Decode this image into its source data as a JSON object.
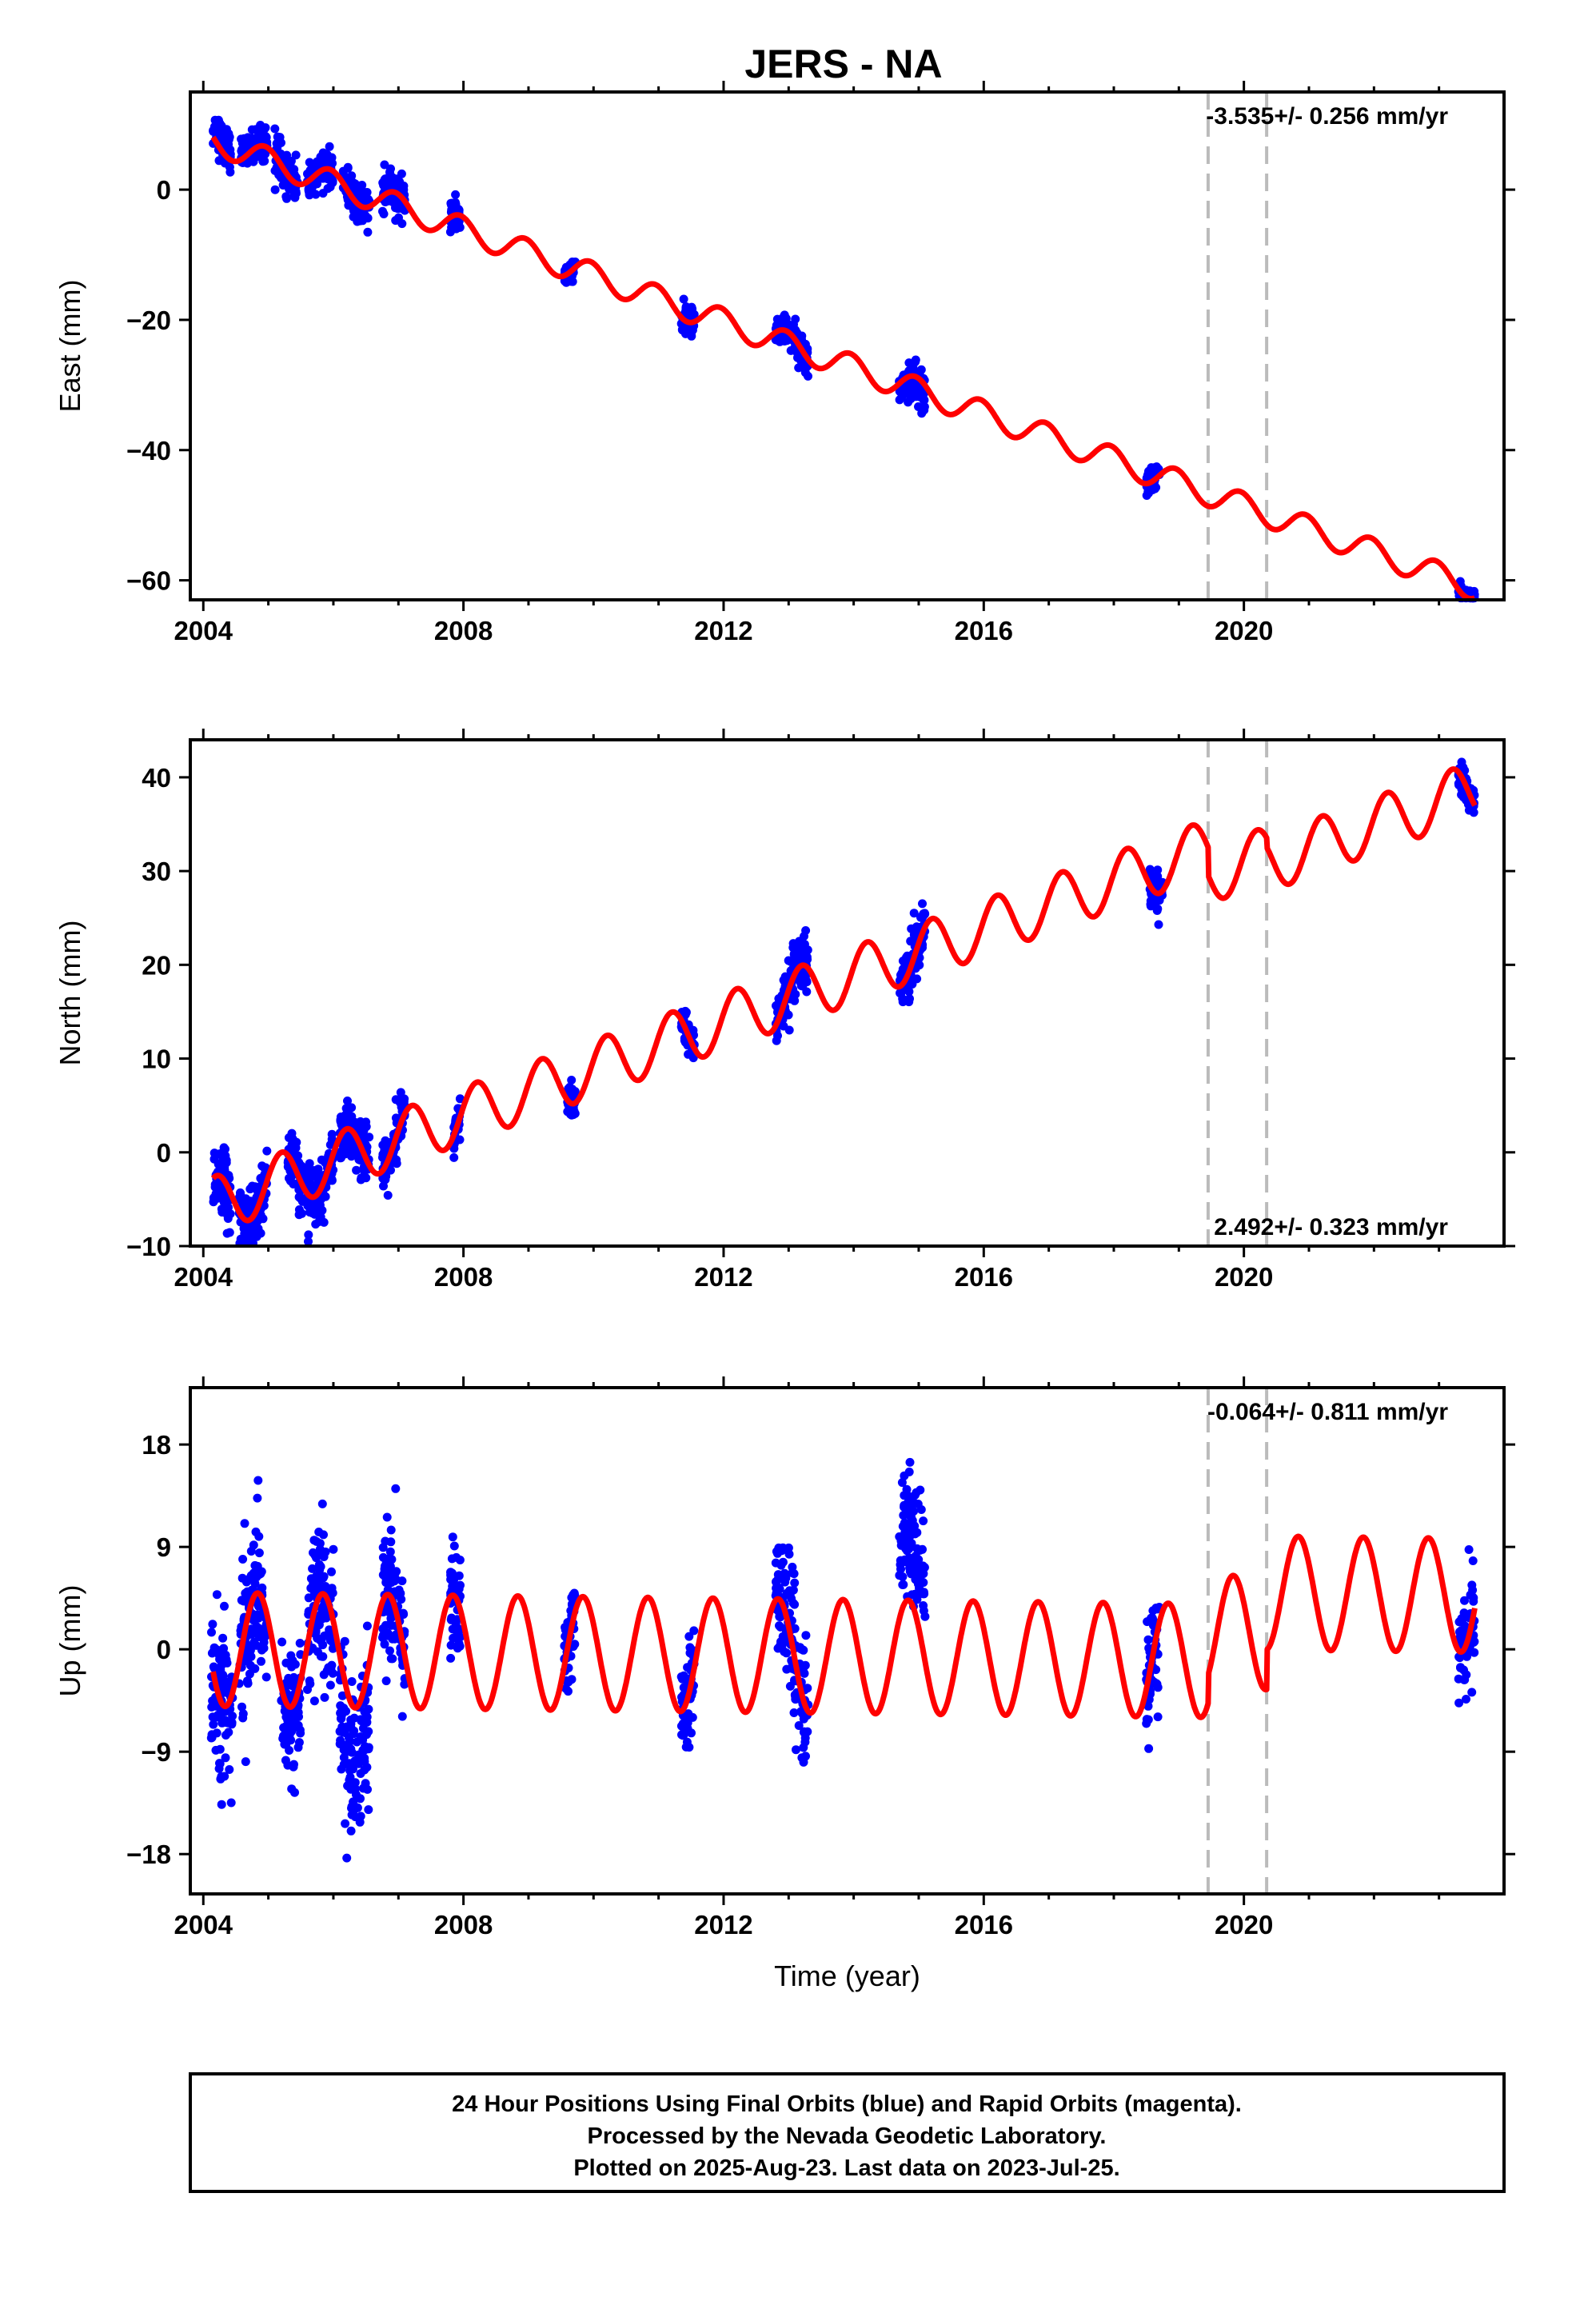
{
  "title": "JERS - NA",
  "colors": {
    "final_orbits": "#0000ff",
    "model": "#ff0000",
    "offset_line": "#bbbbbb"
  },
  "chart_data": [
    {
      "type": "scatter",
      "name": "east",
      "ylabel": "East (mm)",
      "xlabel": "",
      "xlim": [
        2003.8,
        2024.0
      ],
      "ylim": [
        -63,
        15
      ],
      "xticks": [
        2004,
        2008,
        2012,
        2016,
        2020
      ],
      "yticks": [
        0,
        -20,
        -40,
        -60
      ],
      "rate_text": "-3.535+/- 0.256 mm/yr",
      "rate_position": "top-right",
      "offset_epochs": [
        2019.45,
        2020.35
      ],
      "model": {
        "intercept": 8.0,
        "rate": -3.535,
        "t0": 2004.0,
        "annual_amp": 2.0,
        "annual_phase": 1.9,
        "steps": [
          0,
          0
        ]
      },
      "observations": [
        {
          "start": 2004.15,
          "end": 2004.42,
          "spread": 3.0,
          "offset": 1.5
        },
        {
          "start": 2004.58,
          "end": 2004.98,
          "spread": 2.5,
          "offset": 0.5
        },
        {
          "start": 2005.1,
          "end": 2005.45,
          "spread": 3.0,
          "offset": 0
        },
        {
          "start": 2005.6,
          "end": 2006.0,
          "spread": 2.5,
          "offset": 0
        },
        {
          "start": 2006.15,
          "end": 2006.55,
          "spread": 3.0,
          "offset": 0
        },
        {
          "start": 2006.75,
          "end": 2007.1,
          "spread": 3.0,
          "offset": 0
        },
        {
          "start": 2007.8,
          "end": 2007.95,
          "spread": 2.5,
          "offset": 0
        },
        {
          "start": 2009.55,
          "end": 2009.72,
          "spread": 1.5,
          "offset": 0
        },
        {
          "start": 2011.35,
          "end": 2011.55,
          "spread": 2.0,
          "offset": 0
        },
        {
          "start": 2012.8,
          "end": 2013.3,
          "spread": 2.5,
          "offset": 0
        },
        {
          "start": 2014.7,
          "end": 2015.1,
          "spread": 3.0,
          "offset": -1
        },
        {
          "start": 2018.5,
          "end": 2018.7,
          "spread": 2.0,
          "offset": 0
        },
        {
          "start": 2023.3,
          "end": 2023.55,
          "spread": 1.5,
          "offset": 0
        }
      ]
    },
    {
      "type": "scatter",
      "name": "north",
      "ylabel": "North (mm)",
      "xlabel": "",
      "xlim": [
        2003.8,
        2024.0
      ],
      "ylim": [
        -10,
        44
      ],
      "xticks": [
        2004,
        2008,
        2012,
        2016,
        2020
      ],
      "yticks": [
        -10,
        0,
        10,
        20,
        30,
        40
      ],
      "rate_text": "2.492+/- 0.323 mm/yr",
      "rate_position": "bottom-right",
      "offset_epochs": [
        2019.45,
        2020.35
      ],
      "model": {
        "intercept": -6.0,
        "rate": 2.492,
        "t0": 2004.0,
        "annual_amp": 3.0,
        "annual_phase": 0.3,
        "steps": [
          -3,
          -1
        ]
      },
      "observations": [
        {
          "start": 2004.15,
          "end": 2004.42,
          "spread": 3.5,
          "offset": -0.5
        },
        {
          "start": 2004.55,
          "end": 2004.98,
          "spread": 3.0,
          "offset": 0
        },
        {
          "start": 2005.3,
          "end": 2005.55,
          "spread": 3.0,
          "offset": 0
        },
        {
          "start": 2005.6,
          "end": 2006.0,
          "spread": 3.0,
          "offset": 0
        },
        {
          "start": 2006.1,
          "end": 2006.55,
          "spread": 3.0,
          "offset": 0
        },
        {
          "start": 2006.75,
          "end": 2007.1,
          "spread": 3.0,
          "offset": 0
        },
        {
          "start": 2007.85,
          "end": 2007.95,
          "spread": 2.0,
          "offset": 0
        },
        {
          "start": 2009.6,
          "end": 2009.72,
          "spread": 2.0,
          "offset": 0
        },
        {
          "start": 2011.35,
          "end": 2011.55,
          "spread": 2.0,
          "offset": 0
        },
        {
          "start": 2012.8,
          "end": 2013.3,
          "spread": 3.0,
          "offset": 0
        },
        {
          "start": 2014.7,
          "end": 2015.1,
          "spread": 3.0,
          "offset": 0
        },
        {
          "start": 2018.55,
          "end": 2018.75,
          "spread": 2.0,
          "offset": 0
        },
        {
          "start": 2023.3,
          "end": 2023.55,
          "spread": 1.5,
          "offset": 0
        }
      ]
    },
    {
      "type": "scatter",
      "name": "up",
      "ylabel": "Up (mm)",
      "xlabel": "Time (year)",
      "xlim": [
        2003.8,
        2024.0
      ],
      "ylim": [
        -21.5,
        23
      ],
      "xticks": [
        2004,
        2008,
        2012,
        2016,
        2020
      ],
      "yticks": [
        -18,
        -9,
        0,
        9,
        18
      ],
      "rate_text": "-0.064+/- 0.811 mm/yr",
      "rate_position": "top-right",
      "offset_epochs": [
        2019.45,
        2020.35
      ],
      "model": {
        "intercept": 0.0,
        "rate": -0.064,
        "t0": 2004.0,
        "annual_amp": 5.0,
        "annual_phase": 2.6,
        "steps": [
          2.5,
          3.5
        ]
      },
      "observations": [
        {
          "start": 2004.12,
          "end": 2004.45,
          "spread": 7.0,
          "offset": 0
        },
        {
          "start": 2004.55,
          "end": 2004.98,
          "spread": 7.0,
          "offset": 0
        },
        {
          "start": 2005.2,
          "end": 2005.5,
          "spread": 6.0,
          "offset": -1
        },
        {
          "start": 2005.6,
          "end": 2006.0,
          "spread": 6.0,
          "offset": 0
        },
        {
          "start": 2006.1,
          "end": 2006.55,
          "spread": 7.0,
          "offset": -5
        },
        {
          "start": 2006.75,
          "end": 2007.1,
          "spread": 6.0,
          "offset": 0
        },
        {
          "start": 2007.8,
          "end": 2007.95,
          "spread": 5.0,
          "offset": 0
        },
        {
          "start": 2009.55,
          "end": 2009.72,
          "spread": 4.0,
          "offset": 0
        },
        {
          "start": 2011.35,
          "end": 2011.55,
          "spread": 4.0,
          "offset": 0
        },
        {
          "start": 2012.8,
          "end": 2013.3,
          "spread": 6.0,
          "offset": 0
        },
        {
          "start": 2014.7,
          "end": 2015.1,
          "spread": 6.0,
          "offset": 6
        },
        {
          "start": 2018.5,
          "end": 2018.7,
          "spread": 5.0,
          "offset": 0
        },
        {
          "start": 2023.3,
          "end": 2023.55,
          "spread": 4.0,
          "offset": 0
        }
      ]
    }
  ],
  "caption": {
    "line1": "24 Hour Positions Using Final Orbits (blue) and Rapid Orbits (magenta).",
    "line2": "Processed by the Nevada Geodetic Laboratory.",
    "line3": "Plotted on 2025-Aug-23. Last data on 2023-Jul-25."
  }
}
